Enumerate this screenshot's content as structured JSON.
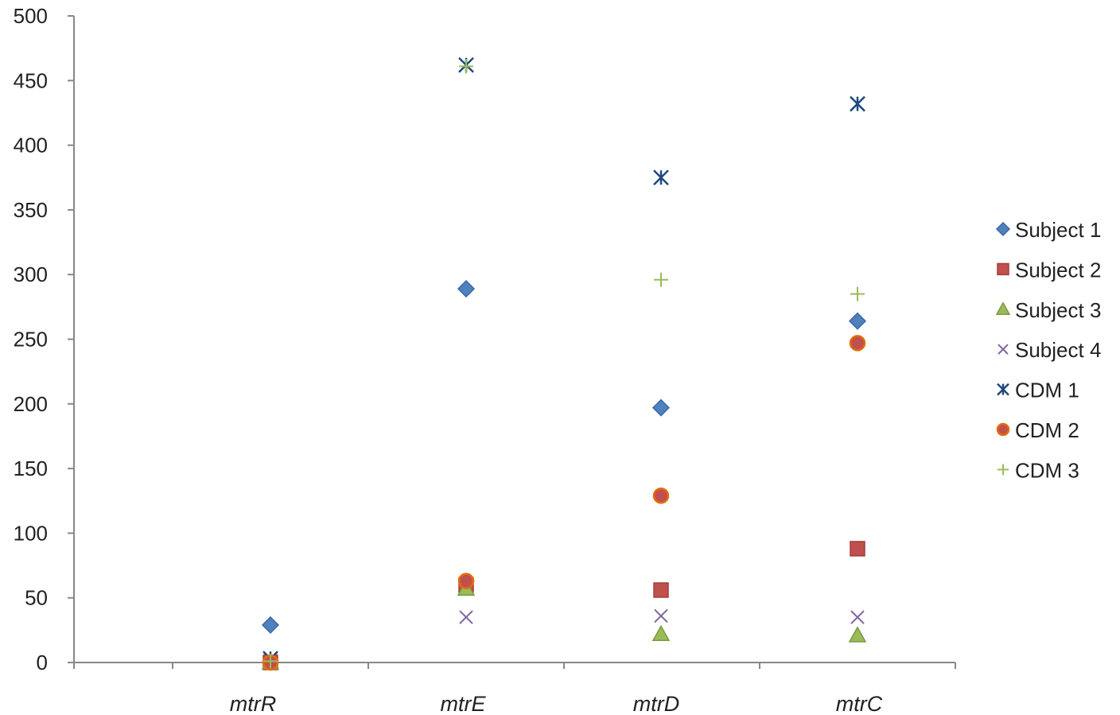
{
  "chart_data": {
    "type": "scatter",
    "title": "",
    "xlabel": "",
    "ylabel": "",
    "categories": [
      "mtrR",
      "mtrE",
      "mtrD",
      "mtrC"
    ],
    "ylim": [
      0,
      500
    ],
    "yticks": [
      0,
      50,
      100,
      150,
      200,
      250,
      300,
      350,
      400,
      450,
      500
    ],
    "grid": false,
    "legend": {
      "position": "right"
    },
    "series": [
      {
        "name": "Subject 1",
        "marker": "diamond",
        "color": "#4f81bd",
        "values": [
          29,
          289,
          197,
          264
        ]
      },
      {
        "name": "Subject 2",
        "marker": "square",
        "color": "#c0504d",
        "values": [
          0,
          60,
          56,
          88
        ]
      },
      {
        "name": "Subject 3",
        "marker": "triangle",
        "color": "#9bbb59",
        "values": [
          0,
          57,
          22,
          21
        ]
      },
      {
        "name": "Subject 4",
        "marker": "x",
        "color": "#8064a2",
        "values": [
          2,
          35,
          36,
          35
        ]
      },
      {
        "name": "CDM 1",
        "marker": "star",
        "color": "#1f497d",
        "values": [
          3,
          462,
          375,
          432
        ]
      },
      {
        "name": "CDM 2",
        "marker": "circle",
        "color": "#e46c0a",
        "values": [
          0,
          63,
          129,
          247
        ]
      },
      {
        "name": "CDM 3",
        "marker": "plus",
        "color": "#9bbb59",
        "values": [
          1,
          461,
          296,
          285
        ]
      }
    ]
  }
}
